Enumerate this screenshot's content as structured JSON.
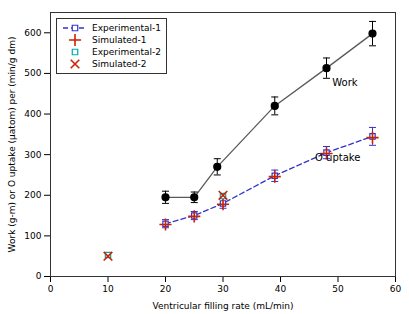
{
  "chart_data": {
    "type": "line",
    "xlabel": "Ventricular filling rate (mL/min)",
    "ylabel": "Work (g-m) or O uptake (μatom) per (min/g dm)",
    "xlim": [
      0,
      60
    ],
    "ylim": [
      0,
      650
    ],
    "xticks": [
      0,
      10,
      20,
      30,
      40,
      50,
      60
    ],
    "yticks": [
      0,
      100,
      200,
      300,
      400,
      500,
      600
    ],
    "legend": "upper left",
    "series": [
      {
        "x": [
          20,
          25,
          29,
          39,
          48,
          56
        ],
        "values": [
          195,
          195,
          270,
          420,
          513,
          598
        ],
        "yerr": [
          15,
          13,
          20,
          22,
          25,
          30
        ],
        "color": "black",
        "marker": "circle",
        "line_style": "solid"
      },
      {
        "name": "Experimental-1",
        "x": [
          20,
          25,
          30,
          39,
          48,
          56
        ],
        "values": [
          130,
          150,
          180,
          248,
          305,
          345
        ],
        "yerr": [
          10,
          10,
          12,
          14,
          15,
          22
        ],
        "color": "#3333cc",
        "marker": "square",
        "line_style": "dashed"
      },
      {
        "name": "Simulated-1",
        "x": [
          20,
          25,
          30,
          39,
          48,
          56
        ],
        "values": [
          128,
          148,
          178,
          246,
          303,
          342
        ],
        "color": "#cc2200",
        "marker": "plus",
        "line_style": "none"
      },
      {
        "name": "Experimental-2",
        "x": [
          10,
          30
        ],
        "values": [
          53,
          198
        ],
        "color": "#00aaaa",
        "marker": "square",
        "line_style": "none"
      },
      {
        "name": "Simulated-2",
        "x": [
          10,
          30
        ],
        "values": [
          50,
          200
        ],
        "color": "#cc2200",
        "marker": "x",
        "line_style": "none"
      }
    ],
    "annotations": [
      {
        "text": "Work",
        "x": 49,
        "y": 470
      },
      {
        "text": "O uptake",
        "x": 46,
        "y": 285
      }
    ]
  }
}
